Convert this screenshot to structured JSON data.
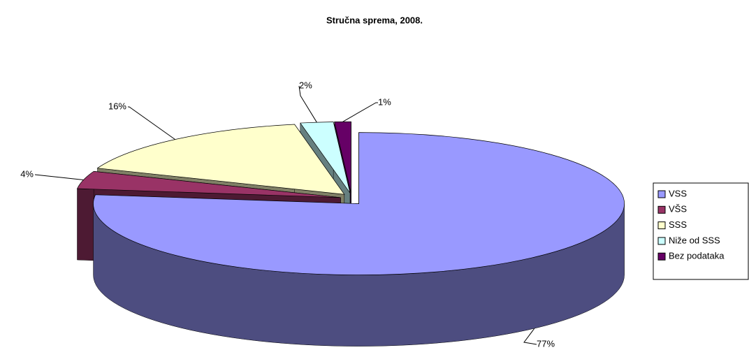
{
  "chart_data": {
    "type": "pie3d",
    "title": "Stručna sprema, 2008.",
    "categories": [
      "VSS",
      "VŠS",
      "SSS",
      "Niže od SSS",
      "Bez podataka"
    ],
    "values": [
      77,
      4,
      16,
      2,
      1
    ],
    "value_labels": [
      "77%",
      "4%",
      "16%",
      "2%",
      "1%"
    ],
    "colors": [
      "#9999ff",
      "#993366",
      "#ffffcc",
      "#ccffff",
      "#660066"
    ],
    "legend": "right"
  }
}
